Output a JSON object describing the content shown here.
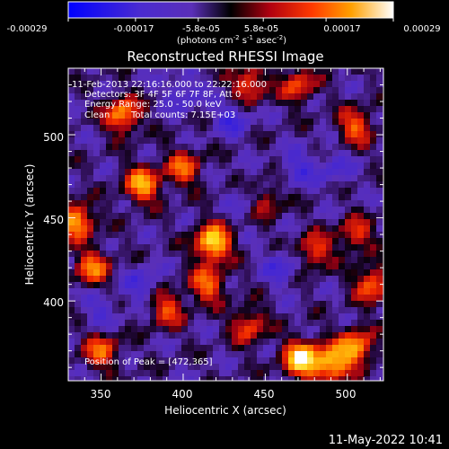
{
  "colorbar": {
    "ticks": [
      "-0.00029",
      "-0.00017",
      "-5.8e-05",
      "5.8e-05",
      "0.00017",
      "0.00029"
    ],
    "units_main": "(photons cm",
    "units_sup1": "-2",
    "units_mid1": " s",
    "units_sup2": "-1",
    "units_mid2": " asec",
    "units_sup3": "-2",
    "units_end": ")",
    "range": [
      -0.00029,
      0.00029
    ],
    "palette": [
      "#0000ff",
      "#5a2fb8",
      "#000000",
      "#c01010",
      "#ff3000",
      "#ff8a00",
      "#ffd010",
      "#ffffff"
    ]
  },
  "chart_data": {
    "type": "heatmap",
    "title": "Reconstructed RHESSI Image",
    "xlabel": "Heliocentric X (arcsec)",
    "ylabel": "Heliocentric Y (arcsec)",
    "xlim": [
      330,
      522
    ],
    "ylim": [
      352,
      540
    ],
    "xticks": [
      350,
      400,
      450,
      500
    ],
    "yticks": [
      400,
      450,
      500
    ],
    "xtick_labels": [
      "350",
      "400",
      "450",
      "500"
    ],
    "ytick_labels": [
      "400",
      "450",
      "500"
    ],
    "annotations": [
      "11-Feb-2013 22:16:16.000 to 22:22:16.000",
      "Detectors: 3F 4F 5F 6F 7F 8F, Att 0",
      "Energy Range: 25.0 - 50.0 keV",
      "Clean",
      "Total counts: 7.15E+03"
    ],
    "peak_label": "Position of Peak = [472,365]",
    "peak": [
      472,
      365
    ],
    "hotspots": [
      {
        "x": 418,
        "y": 435,
        "v": 0.95
      },
      {
        "x": 472,
        "y": 365,
        "v": 1.0
      },
      {
        "x": 490,
        "y": 362,
        "v": 0.8
      },
      {
        "x": 505,
        "y": 372,
        "v": 0.75
      },
      {
        "x": 335,
        "y": 448,
        "v": 0.75
      },
      {
        "x": 345,
        "y": 420,
        "v": 0.6
      },
      {
        "x": 363,
        "y": 512,
        "v": 0.7
      },
      {
        "x": 375,
        "y": 470,
        "v": 0.75
      },
      {
        "x": 400,
        "y": 480,
        "v": 0.55
      },
      {
        "x": 415,
        "y": 410,
        "v": 0.6
      },
      {
        "x": 390,
        "y": 395,
        "v": 0.5
      },
      {
        "x": 440,
        "y": 530,
        "v": 0.55
      },
      {
        "x": 470,
        "y": 530,
        "v": 0.5
      },
      {
        "x": 505,
        "y": 505,
        "v": 0.55
      },
      {
        "x": 515,
        "y": 410,
        "v": 0.6
      },
      {
        "x": 505,
        "y": 440,
        "v": 0.45
      },
      {
        "x": 350,
        "y": 370,
        "v": 0.55
      },
      {
        "x": 440,
        "y": 385,
        "v": 0.5
      },
      {
        "x": 480,
        "y": 430,
        "v": 0.5
      },
      {
        "x": 450,
        "y": 460,
        "v": 0.4
      }
    ],
    "coldspots": [
      {
        "x": 430,
        "y": 510,
        "v": -0.35
      },
      {
        "x": 400,
        "y": 525,
        "v": -0.3
      },
      {
        "x": 470,
        "y": 480,
        "v": -0.3
      },
      {
        "x": 460,
        "y": 420,
        "v": -0.3
      },
      {
        "x": 375,
        "y": 410,
        "v": -0.3
      },
      {
        "x": 350,
        "y": 395,
        "v": -0.25
      },
      {
        "x": 492,
        "y": 480,
        "v": -0.25
      },
      {
        "x": 440,
        "y": 460,
        "v": -0.2
      }
    ]
  },
  "timestamp": "11-May-2022 10:41"
}
